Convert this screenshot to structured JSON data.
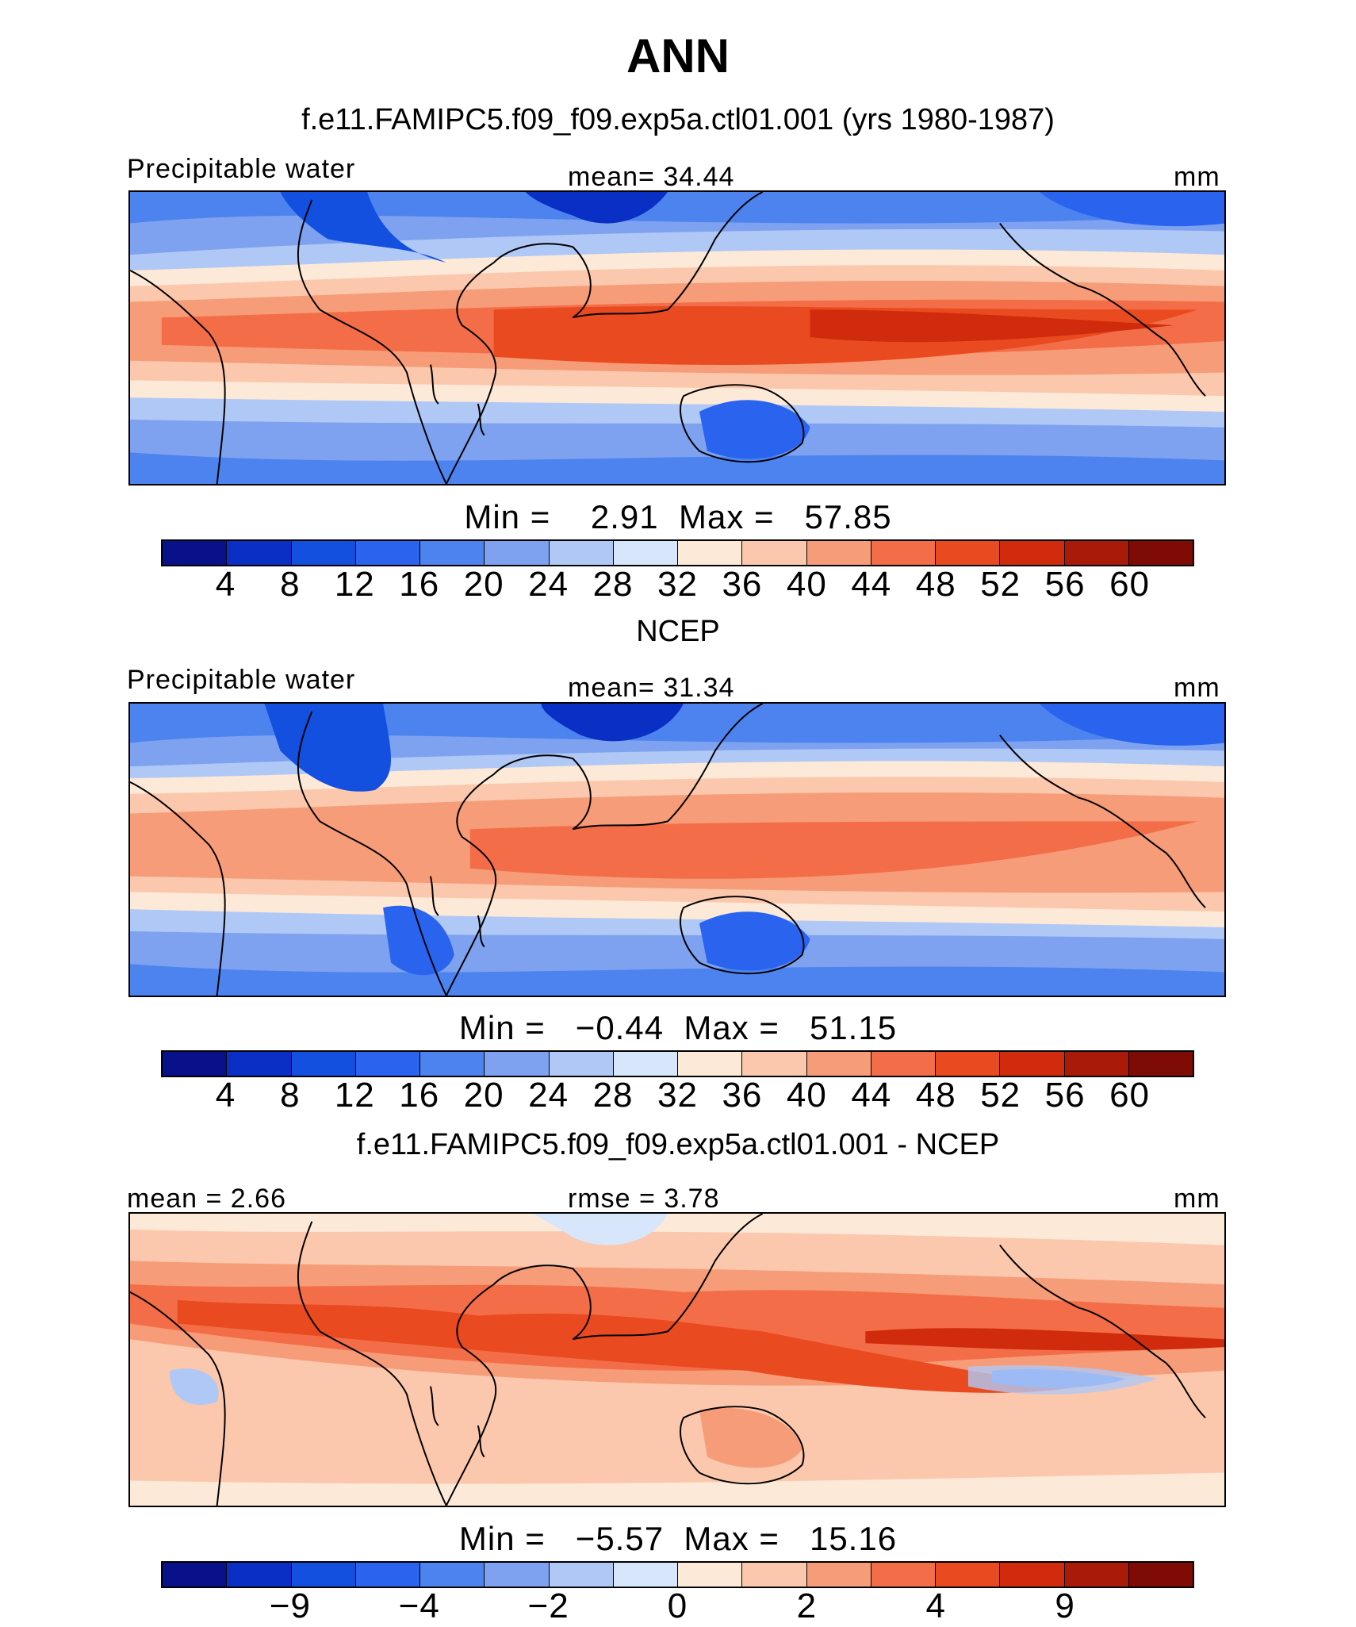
{
  "title": "ANN",
  "colors": [
    "#08118a",
    "#0a2fc4",
    "#1450e0",
    "#2a64ee",
    "#4d83ee",
    "#7ea2f0",
    "#b0c8f5",
    "#d8e6fb",
    "#fde9d8",
    "#fbc8ad",
    "#f79c78",
    "#f36e48",
    "#ea4a1f",
    "#cf2b0c",
    "#a91a08",
    "#7e0c05"
  ],
  "panels": [
    {
      "subtitle": "f.e11.FAMIPC5.f09_f09.exp5a.ctl01.001 (yrs 1980-1987)",
      "left_label": "Precipitable water",
      "center_label": "mean=   34.44",
      "right_label": "mm",
      "minmax": "Min =    2.91  Max =   57.85",
      "ticks": [
        "4",
        "8",
        "12",
        "16",
        "20",
        "24",
        "28",
        "32",
        "36",
        "40",
        "44",
        "48",
        "52",
        "56",
        "60"
      ]
    },
    {
      "subtitle": "NCEP",
      "left_label": "Precipitable water",
      "center_label": "mean=   31.34",
      "right_label": "mm",
      "minmax": "Min =   −0.44  Max =   51.15",
      "ticks": [
        "4",
        "8",
        "12",
        "16",
        "20",
        "24",
        "28",
        "32",
        "36",
        "40",
        "44",
        "48",
        "52",
        "56",
        "60"
      ]
    },
    {
      "subtitle": "f.e11.FAMIPC5.f09_f09.exp5a.ctl01.001 - NCEP",
      "left_label": "mean =    2.66",
      "center_label": "rmse =    3.78",
      "right_label": "mm",
      "minmax": "Min =   −5.57  Max =   15.16",
      "ticks": [
        "−9",
        "−4",
        "−2",
        "0",
        "2",
        "4",
        "9"
      ]
    }
  ]
}
